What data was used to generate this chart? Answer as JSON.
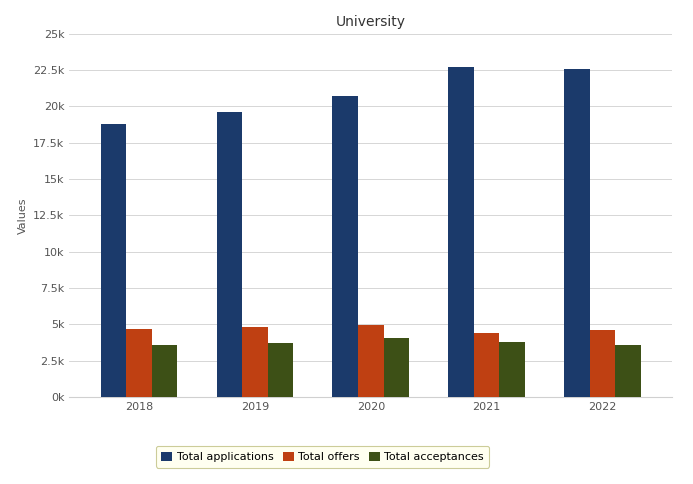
{
  "title": "University",
  "ylabel": "Values",
  "years": [
    "2018",
    "2019",
    "2020",
    "2021",
    "2022"
  ],
  "total_applications": [
    18800,
    19600,
    20700,
    22700,
    22600
  ],
  "total_offers": [
    4700,
    4800,
    4950,
    4400,
    4600
  ],
  "total_acceptances": [
    3600,
    3700,
    4050,
    3750,
    3600
  ],
  "colors": {
    "applications": "#1b3a6b",
    "offers": "#bf4012",
    "acceptances": "#3d5016"
  },
  "legend_labels": [
    "Total applications",
    "Total offers",
    "Total acceptances"
  ],
  "ylim": [
    0,
    25000
  ],
  "yticks": [
    0,
    2500,
    5000,
    7500,
    10000,
    12500,
    15000,
    17500,
    20000,
    22500,
    25000
  ],
  "background_color": "#ffffff",
  "plot_bg": "#f8f8f8",
  "legend_bg": "#fffff0",
  "legend_edge": "#cccc99",
  "bar_width": 0.22,
  "group_width": 1.0,
  "title_fontsize": 10,
  "axis_fontsize": 8,
  "tick_fontsize": 8,
  "legend_fontsize": 8,
  "grid_color": "#d0d0d0",
  "label_color": "#555555",
  "tick_color": "#555555"
}
